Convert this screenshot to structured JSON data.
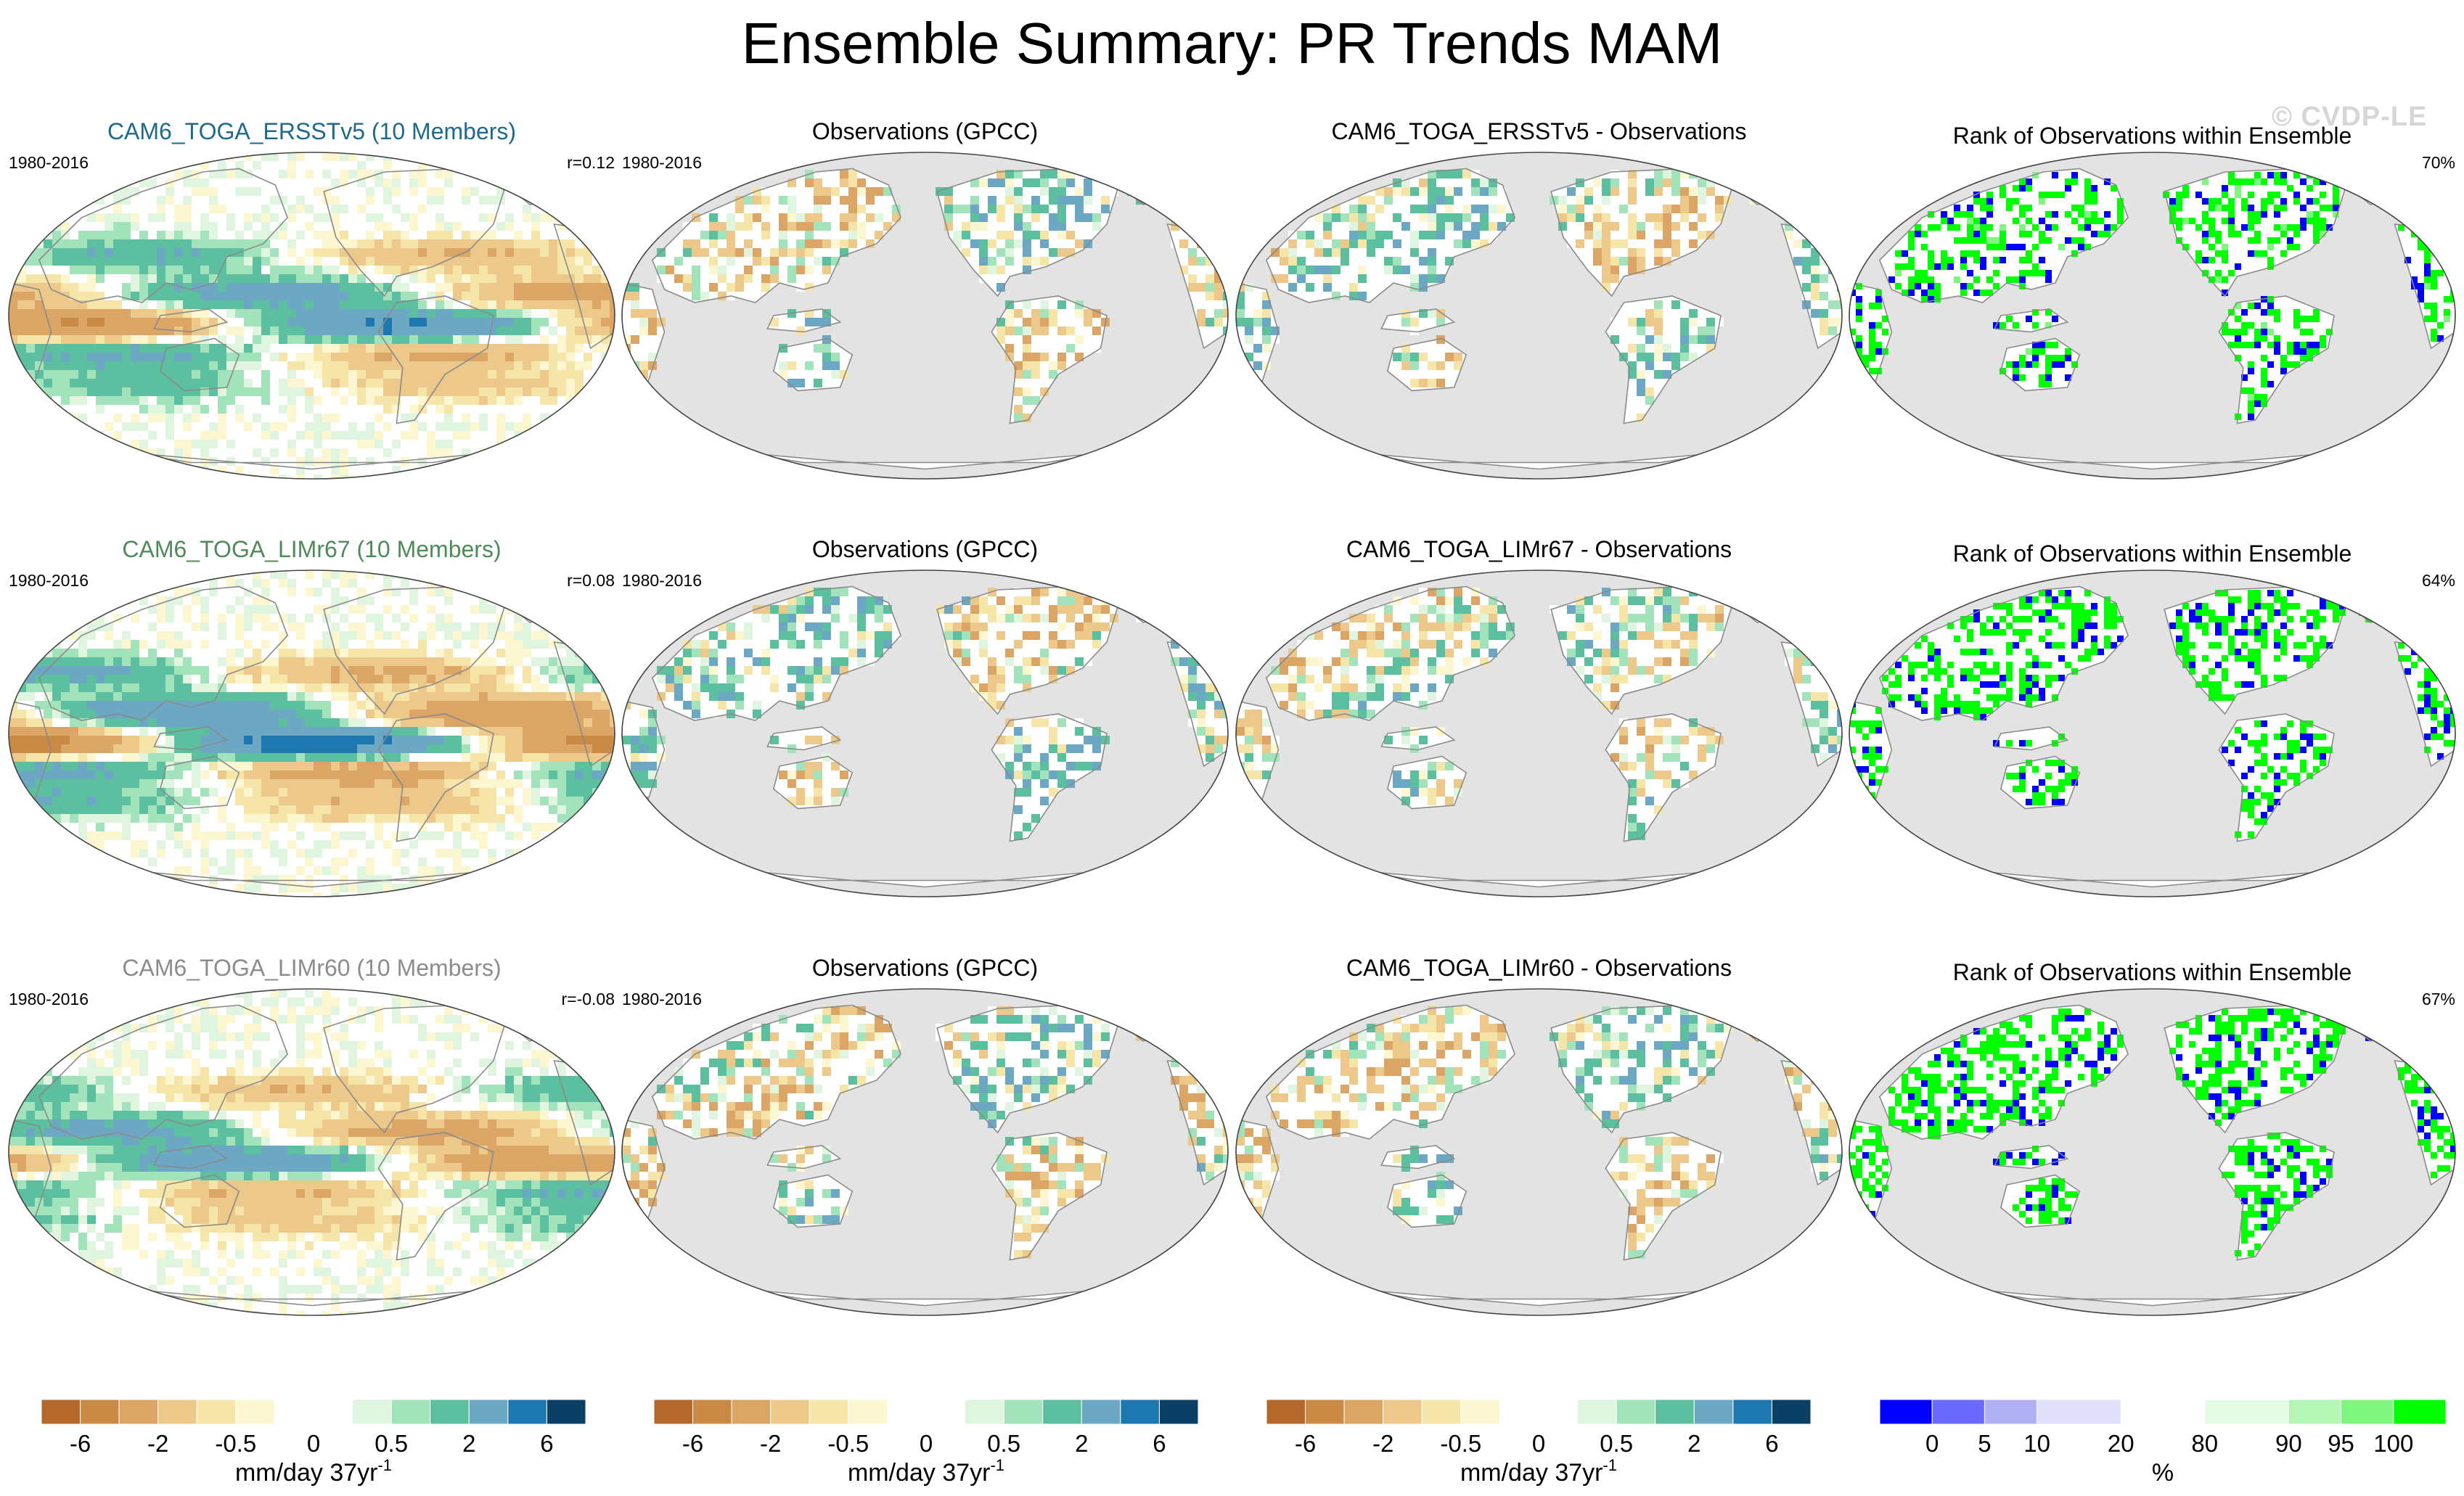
{
  "title": "Ensemble Summary: PR Trends MAM",
  "watermark": "© CVDP-LE",
  "colors": {
    "trend_palette": [
      "#b5682c",
      "#c98a45",
      "#dba566",
      "#ecc98a",
      "#f6e5a9",
      "#fcf6d1",
      "#ffffff",
      "#ffffff",
      "#dff5df",
      "#a3e3bb",
      "#5cbfa0",
      "#6ca7c3",
      "#1f77b0",
      "#0b3f63"
    ],
    "rank_palette": [
      "#0000ff",
      "#6a6aff",
      "#b0b0f2",
      "#e0e0fa",
      "#ffffff",
      "#e6fbe6",
      "#b5f5b5",
      "#80f680",
      "#00ff00"
    ],
    "land": "#ffffff",
    "ocean_obs": "#e3e3e3"
  },
  "chart_data": {
    "type": "map-panel-grid",
    "rows": [
      {
        "model_title": "CAM6_TOGA_ERSSTv5 (10 Members)",
        "model_title_color": "#1f6a8c",
        "period": "1980-2016",
        "correlation": "r=0.12",
        "obs_title": "Observations (GPCC)",
        "obs_period": "1980-2016",
        "diff_title": "CAM6_TOGA_ERSSTv5 - Observations",
        "rank_title": "Rank of Observations within Ensemble",
        "rank_percent": "70%"
      },
      {
        "model_title": "CAM6_TOGA_LIMr67 (10 Members)",
        "model_title_color": "#4f8a5b",
        "period": "1980-2016",
        "correlation": "r=0.08",
        "obs_title": "Observations (GPCC)",
        "obs_period": "1980-2016",
        "diff_title": "CAM6_TOGA_LIMr67 - Observations",
        "rank_title": "Rank of Observations within Ensemble",
        "rank_percent": "64%"
      },
      {
        "model_title": "CAM6_TOGA_LIMr60 (10 Members)",
        "model_title_color": "#8c8c8c",
        "period": "1980-2016",
        "correlation": "r=-0.08",
        "obs_title": "Observations (GPCC)",
        "obs_period": "1980-2016",
        "diff_title": "CAM6_TOGA_LIMr60 - Observations",
        "rank_title": "Rank of Observations within Ensemble",
        "rank_percent": "67%"
      }
    ],
    "trend_colorbar": {
      "ticks": [
        "-6",
        "-2",
        "-0.5",
        "0",
        "0.5",
        "2",
        "6"
      ],
      "label": "mm/day 37yr",
      "label_exp": "-1"
    },
    "rank_colorbar": {
      "ticks": [
        "0",
        "5",
        "10",
        "20",
        "80",
        "90",
        "95",
        "100"
      ],
      "label": "%"
    }
  }
}
